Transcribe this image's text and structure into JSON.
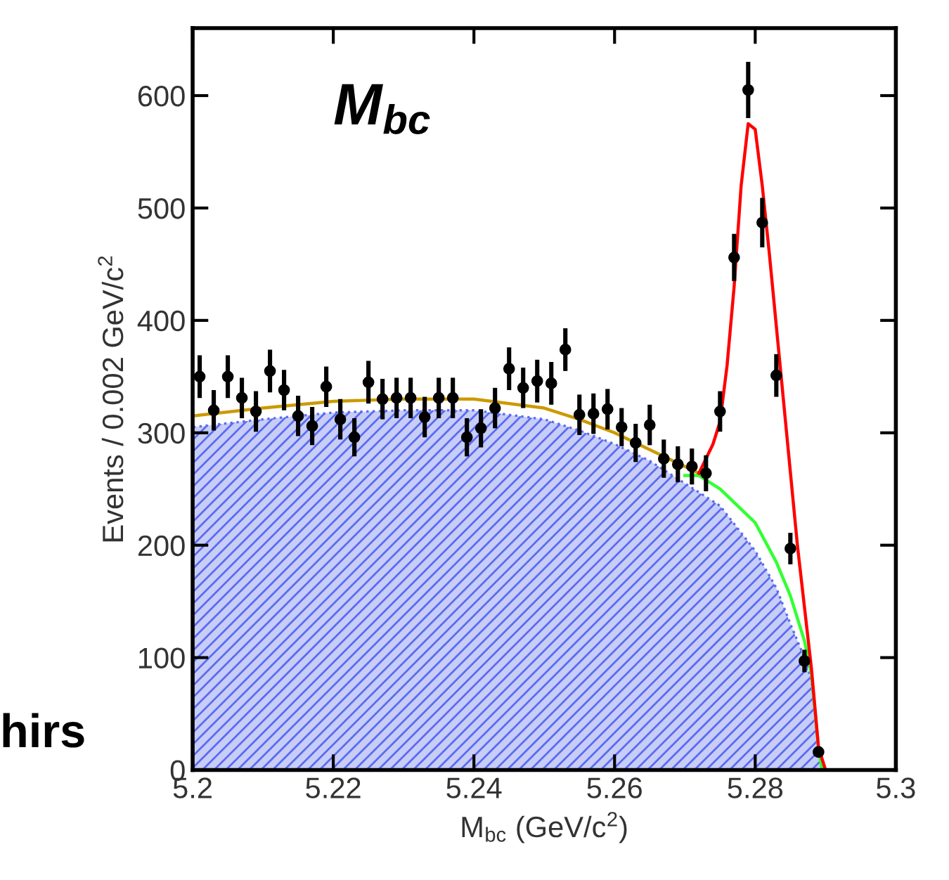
{
  "chart_data": {
    "type": "scatter",
    "xlabel": "M$_{bc}$ (GeV/c$^{2}$)",
    "ylabel": "Events / 0.002 GeV/c$^{2}$",
    "annotations": [
      "M$_{bc}$",
      "hirs"
    ],
    "xlim": [
      5.2,
      5.3
    ],
    "xticks": [
      5.2,
      5.22,
      5.24,
      5.26,
      5.28,
      5.3
    ],
    "ylim": [
      0,
      660
    ],
    "yticks": [
      0,
      100,
      200,
      300,
      400,
      500,
      600
    ],
    "grid": false,
    "legend": false,
    "series": [
      {
        "type": "area",
        "color": "#5a6cf0",
        "x": [
          5.2,
          5.21,
          5.22,
          5.23,
          5.24,
          5.25,
          5.255,
          5.26,
          5.265,
          5.27,
          5.275,
          5.28,
          5.283,
          5.285,
          5.287,
          5.288,
          5.289,
          5.2895,
          5.29,
          5.3
        ],
        "values": [
          305,
          312,
          318,
          320,
          320,
          312,
          302,
          290,
          275,
          255,
          235,
          195,
          162,
          130,
          100,
          80,
          20,
          0,
          0,
          0
        ]
      },
      {
        "type": "line",
        "color": "#33ff33",
        "x": [
          5.27,
          5.272,
          5.275,
          5.28,
          5.283,
          5.285,
          5.287,
          5.288,
          5.289,
          5.2895
        ],
        "values": [
          262,
          262,
          250,
          220,
          185,
          155,
          115,
          85,
          20,
          0
        ]
      },
      {
        "type": "line",
        "color": "#cc9900",
        "x": [
          5.2,
          5.21,
          5.22,
          5.23,
          5.24,
          5.25,
          5.255,
          5.26,
          5.265,
          5.27,
          5.272
        ],
        "values": [
          315,
          322,
          328,
          330,
          330,
          322,
          312,
          300,
          285,
          270,
          264
        ]
      },
      {
        "type": "line",
        "color": "#ff0000",
        "x": [
          5.272,
          5.274,
          5.275,
          5.276,
          5.277,
          5.278,
          5.279,
          5.28,
          5.281,
          5.282,
          5.283,
          5.284,
          5.285,
          5.286,
          5.287,
          5.288,
          5.289,
          5.29,
          5.295
        ],
        "values": [
          264,
          290,
          310,
          360,
          430,
          520,
          575,
          570,
          520,
          460,
          395,
          330,
          265,
          200,
          145,
          90,
          20,
          0,
          0
        ]
      },
      {
        "color": "#000000",
        "marker": "circle",
        "x": [
          5.201,
          5.203,
          5.205,
          5.207,
          5.209,
          5.211,
          5.213,
          5.215,
          5.217,
          5.219,
          5.221,
          5.223,
          5.225,
          5.227,
          5.229,
          5.231,
          5.233,
          5.235,
          5.237,
          5.239,
          5.241,
          5.243,
          5.245,
          5.247,
          5.249,
          5.251,
          5.253,
          5.255,
          5.257,
          5.259,
          5.261,
          5.263,
          5.265,
          5.267,
          5.269,
          5.271,
          5.273,
          5.275,
          5.277,
          5.279,
          5.281,
          5.283,
          5.285,
          5.287,
          5.289
        ],
        "values": [
          350,
          320,
          350,
          331,
          319,
          355,
          338,
          315,
          306,
          341,
          312,
          296,
          345,
          330,
          331,
          331,
          314,
          331,
          331,
          296,
          304,
          322,
          357,
          340,
          346,
          344,
          374,
          316,
          317,
          321,
          305,
          291,
          307,
          277,
          272,
          270,
          264,
          319,
          456,
          605,
          487,
          351,
          197,
          97,
          16
        ],
        "errors": [
          19,
          18,
          19,
          18,
          18,
          19,
          18,
          18,
          17,
          18,
          18,
          17,
          19,
          18,
          18,
          18,
          18,
          18,
          18,
          17,
          17,
          18,
          19,
          18,
          19,
          19,
          19,
          18,
          18,
          18,
          17,
          17,
          18,
          17,
          16,
          16,
          16,
          18,
          21,
          25,
          22,
          19,
          14,
          10,
          4
        ]
      }
    ]
  }
}
